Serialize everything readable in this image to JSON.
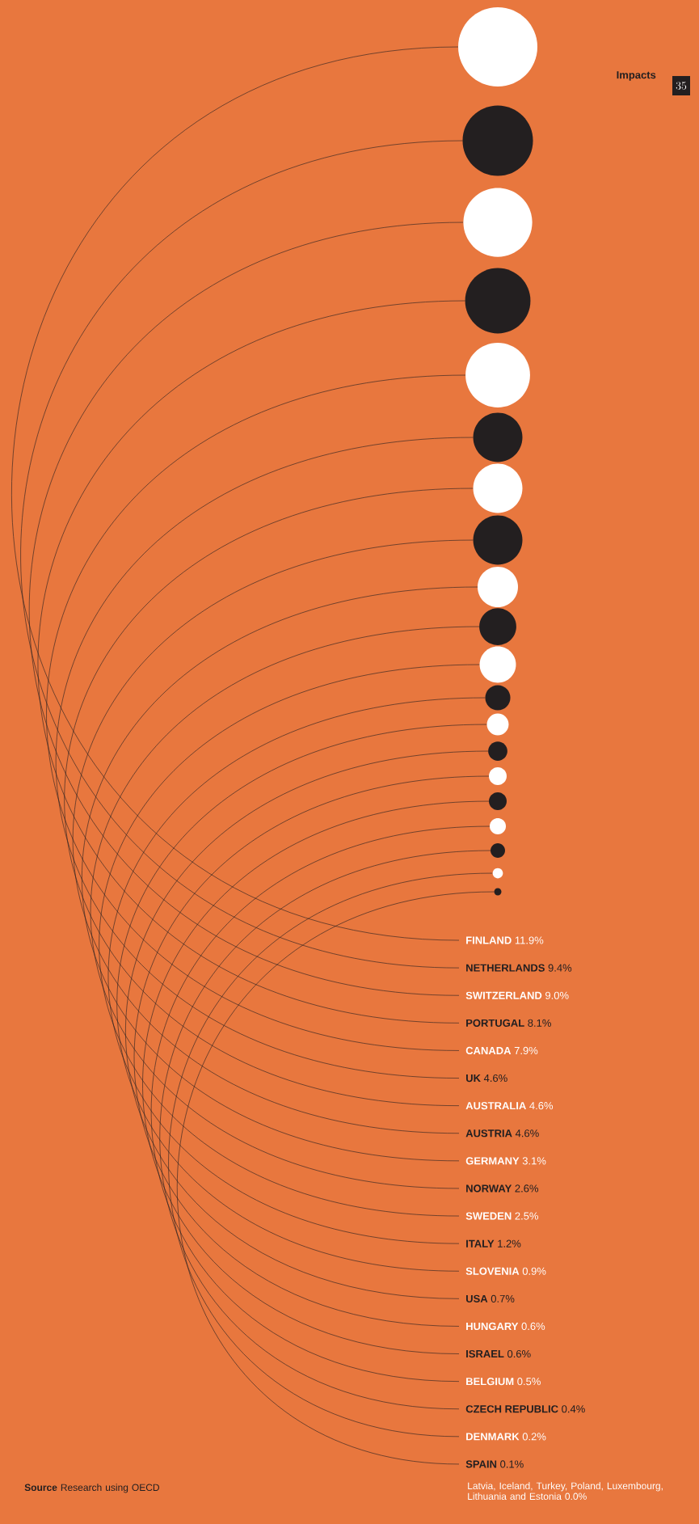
{
  "chart_data": {
    "type": "other",
    "categories": [
      "FINLAND",
      "NETHERLANDS",
      "SWITZERLAND",
      "PORTUGAL",
      "CANADA",
      "UK",
      "AUSTRALIA",
      "AUSTRIA",
      "GERMANY",
      "NORWAY",
      "SWEDEN",
      "ITALY",
      "SLOVENIA",
      "USA",
      "HUNGARY",
      "ISRAEL",
      "BELGIUM",
      "CZECH REPUBLIC",
      "DENMARK",
      "SPAIN"
    ],
    "values": [
      11.9,
      9.4,
      9.0,
      8.1,
      7.9,
      4.6,
      4.6,
      4.6,
      3.1,
      2.6,
      2.5,
      1.2,
      0.9,
      0.7,
      0.6,
      0.6,
      0.5,
      0.4,
      0.2,
      0.1
    ],
    "value_labels": [
      "11.9%",
      "9.4%",
      "9.0%",
      "8.1%",
      "7.9%",
      "4.6%",
      "4.6%",
      "4.6%",
      "3.1%",
      "2.6%",
      "2.5%",
      "1.2%",
      "0.9%",
      "0.7%",
      "0.6%",
      "0.6%",
      "0.5%",
      "0.4%",
      "0.2%",
      "0.1%"
    ],
    "colors": [
      "#ffffff",
      "#231f20",
      "#ffffff",
      "#231f20",
      "#ffffff",
      "#231f20",
      "#ffffff",
      "#231f20",
      "#ffffff",
      "#231f20",
      "#ffffff",
      "#231f20",
      "#ffffff",
      "#231f20",
      "#ffffff",
      "#231f20",
      "#ffffff",
      "#231f20",
      "#ffffff",
      "#231f20"
    ],
    "annotations": [
      "Impacts",
      "35",
      "**Source** Research using OECD",
      "Latvia, Iceland, Turkey, Poland, Luxembourg, Lithuania and Estonia 0.0%"
    ]
  }
}
